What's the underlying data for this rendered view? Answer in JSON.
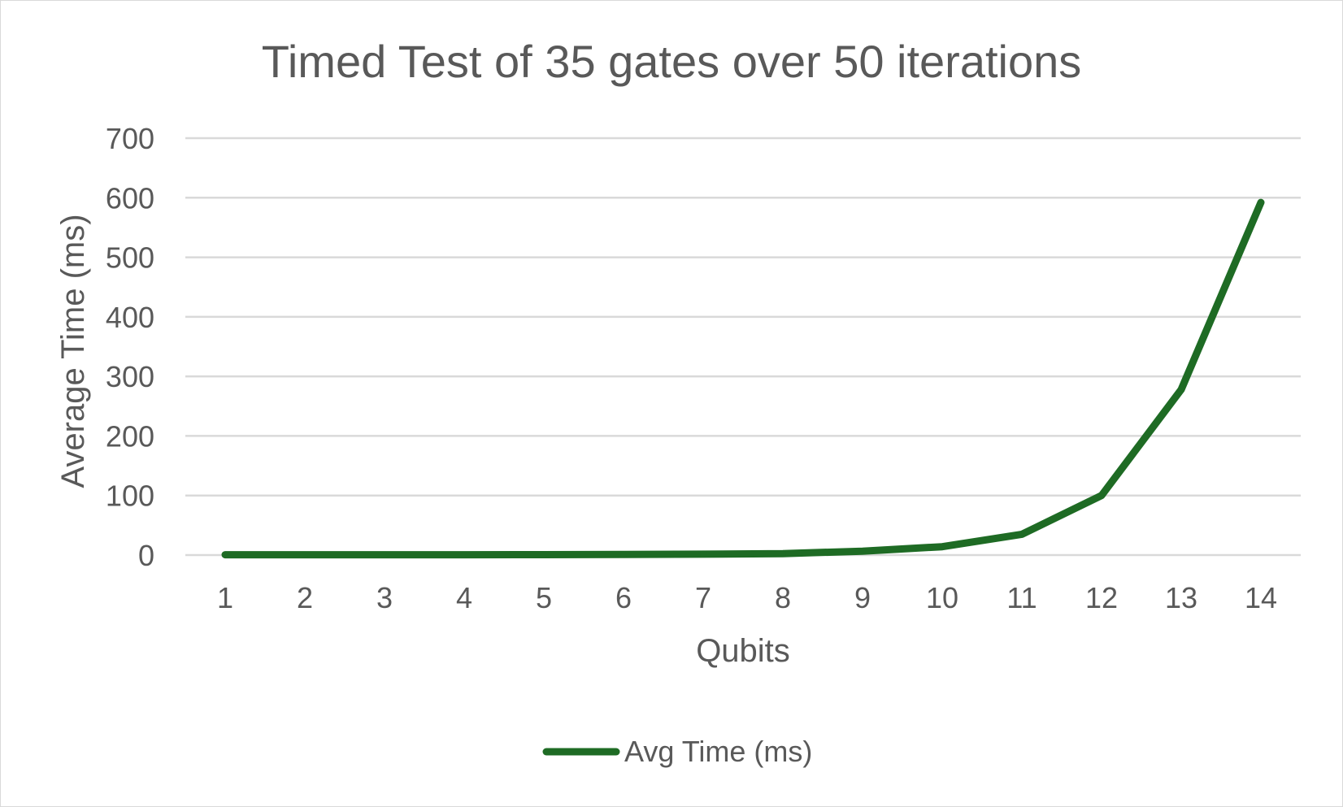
{
  "chart_data": {
    "type": "line",
    "title": "Timed Test of 35 gates over 50 iterations",
    "xlabel": "Qubits",
    "ylabel": "Average Time (ms)",
    "categories": [
      "1",
      "2",
      "3",
      "4",
      "5",
      "6",
      "7",
      "8",
      "9",
      "10",
      "11",
      "12",
      "13",
      "14"
    ],
    "y_ticks": [
      "0",
      "100",
      "200",
      "300",
      "400",
      "500",
      "600",
      "700"
    ],
    "ylim": [
      0,
      700
    ],
    "grid": true,
    "legend_position": "bottom",
    "series": [
      {
        "name": "Avg Time (ms)",
        "color": "#1e6b24",
        "values": [
          0.5,
          0.5,
          0.6,
          0.6,
          0.7,
          0.9,
          1.5,
          2.5,
          6.5,
          14,
          35,
          100,
          278,
          592
        ]
      }
    ]
  }
}
